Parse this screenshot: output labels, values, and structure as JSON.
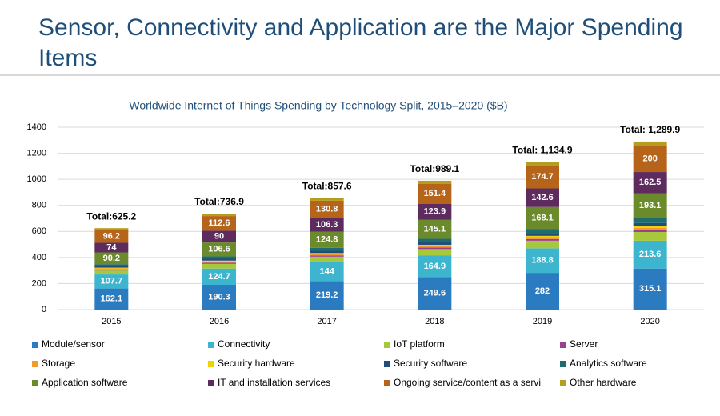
{
  "page_title": "Sensor, Connectivity and Application are the Major Spending Items",
  "chart_data": {
    "type": "stacked_bar",
    "title": "Worldwide Internet of Things Spending by Technology Split, 2015–2020 ($B)",
    "categories": [
      "2015",
      "2016",
      "2017",
      "2018",
      "2019",
      "2020"
    ],
    "ylim": [
      0,
      1400
    ],
    "yticks": [
      0,
      200,
      400,
      600,
      800,
      1000,
      1200,
      1400
    ],
    "grid": true,
    "series": [
      {
        "name": "Module/sensor",
        "color": "#2b7bc0",
        "show_labels": true,
        "values": [
          162.1,
          190.3,
          219.2,
          249.6,
          282,
          315.1
        ]
      },
      {
        "name": "Connectivity",
        "color": "#3db5cf",
        "show_labels": true,
        "values": [
          107.7,
          124.7,
          144,
          164.9,
          188.8,
          213.6
        ]
      },
      {
        "name": "IoT platform",
        "color": "#a8c83c",
        "show_labels": false,
        "values": [
          30,
          36,
          43,
          50,
          58,
          67
        ]
      },
      {
        "name": "Server",
        "color": "#9b3f8f",
        "show_labels": false,
        "values": [
          8,
          9,
          10,
          12,
          13,
          15
        ]
      },
      {
        "name": "Storage",
        "color": "#f29a2e",
        "show_labels": false,
        "values": [
          8,
          9,
          10,
          12,
          14,
          16
        ]
      },
      {
        "name": "Security hardware",
        "color": "#f3d000",
        "show_labels": false,
        "values": [
          6,
          7,
          8,
          9,
          10,
          12
        ]
      },
      {
        "name": "Security software",
        "color": "#1f4e79",
        "show_labels": false,
        "values": [
          12,
          14,
          17,
          20,
          23,
          26
        ]
      },
      {
        "name": "Analytics software",
        "color": "#1e6b70",
        "show_labels": false,
        "values": [
          15,
          18.7,
          22.5,
          26.2,
          30.7,
          35.6
        ]
      },
      {
        "name": "Application software",
        "color": "#6b8a2c",
        "show_labels": true,
        "values": [
          90.2,
          106.6,
          124.8,
          145.1,
          168.1,
          193.1
        ]
      },
      {
        "name": "IT and installation services",
        "color": "#5e2b5f",
        "show_labels": true,
        "values": [
          74,
          90,
          106.3,
          123.9,
          142.6,
          162.5
        ]
      },
      {
        "name": "Ongoing service/content as a servi",
        "color": "#b7641b",
        "show_labels": true,
        "values": [
          96.2,
          112.6,
          130.8,
          151.4,
          174.7,
          200
        ]
      },
      {
        "name": "Other hardware",
        "color": "#b59e1f",
        "show_labels": false,
        "values": [
          16,
          19,
          22,
          25,
          30,
          34
        ]
      }
    ],
    "totals": {
      "values": [
        625.2,
        736.9,
        857.6,
        989.1,
        1134.9,
        1289.9
      ],
      "labels": [
        "Total:625.2",
        "Total:736.9",
        "Total:857.6",
        "Total:989.1",
        "Total: 1,134.9",
        "Total: 1,289.9"
      ]
    }
  }
}
